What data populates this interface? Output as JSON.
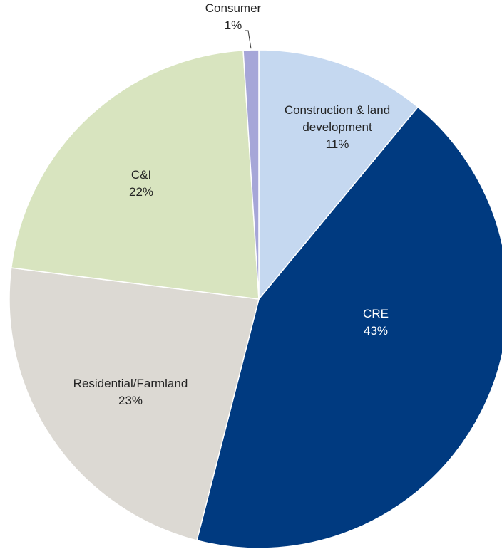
{
  "chart_data": {
    "type": "pie",
    "title": "",
    "start_angle_deg": 0,
    "direction": "clockwise",
    "legend": "none",
    "slices": [
      {
        "label_lines": [
          "Construction & land",
          "development"
        ],
        "percent_label": "11%",
        "value": 11,
        "color": "#c5d8f0",
        "label_color": "#222222"
      },
      {
        "label_lines": [
          "CRE"
        ],
        "percent_label": "43%",
        "value": 43,
        "color": "#003a80",
        "label_color": "#ffffff"
      },
      {
        "label_lines": [
          "Residential/Farmland"
        ],
        "percent_label": "23%",
        "value": 23,
        "color": "#dcd9d3",
        "label_color": "#222222"
      },
      {
        "label_lines": [
          "C&I"
        ],
        "percent_label": "22%",
        "value": 22,
        "color": "#d8e4bf",
        "label_color": "#222222"
      },
      {
        "label_lines": [
          "Consumer"
        ],
        "percent_label": "1%",
        "value": 1,
        "color": "#a6a6d8",
        "label_color": "#222222"
      }
    ]
  }
}
